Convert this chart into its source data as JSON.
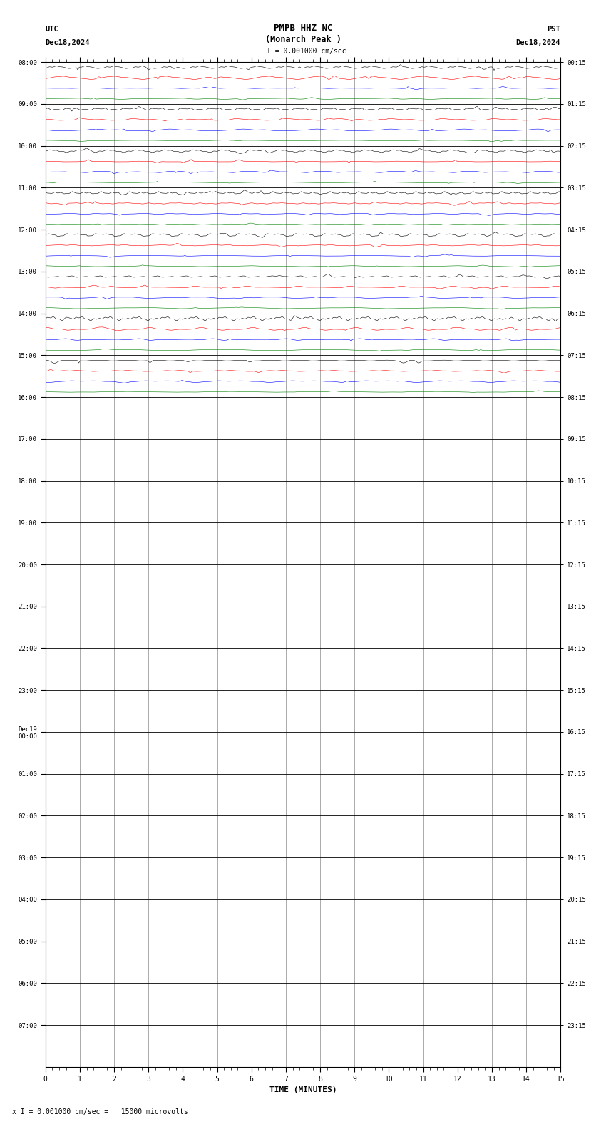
{
  "title_line1": "PMPB HHZ NC",
  "title_line2": "(Monarch Peak )",
  "scale_label": "I = 0.001000 cm/sec",
  "utc_label": "UTC",
  "utc_date": "Dec18,2024",
  "pst_label": "PST",
  "pst_date": "Dec18,2024",
  "bottom_note": "x I = 0.001000 cm/sec =   15000 microvolts",
  "xlabel": "TIME (MINUTES)",
  "left_times_utc": [
    "08:00",
    "09:00",
    "10:00",
    "11:00",
    "12:00",
    "13:00",
    "14:00",
    "15:00",
    "16:00",
    "17:00",
    "18:00",
    "19:00",
    "20:00",
    "21:00",
    "22:00",
    "23:00",
    "Dec19\n00:00",
    "01:00",
    "02:00",
    "03:00",
    "04:00",
    "05:00",
    "06:00",
    "07:00"
  ],
  "right_times_pst": [
    "00:15",
    "01:15",
    "02:15",
    "03:15",
    "04:15",
    "05:15",
    "06:15",
    "07:15",
    "08:15",
    "09:15",
    "10:15",
    "11:15",
    "12:15",
    "13:15",
    "14:15",
    "15:15",
    "16:15",
    "17:15",
    "18:15",
    "19:15",
    "20:15",
    "21:15",
    "22:15",
    "23:15"
  ],
  "n_rows": 24,
  "n_cols": 15,
  "active_rows": 8,
  "colors": [
    "black",
    "red",
    "blue",
    "green"
  ],
  "bg_color": "white",
  "grid_color": "#888888",
  "trace_amplitude_black": 0.35,
  "trace_amplitude_red": 0.25,
  "trace_amplitude_blue": 0.2,
  "trace_amplitude_green": 0.15,
  "noise_freq_black": 18,
  "noise_freq_red": 10,
  "noise_freq_blue": 7,
  "noise_freq_green": 5
}
